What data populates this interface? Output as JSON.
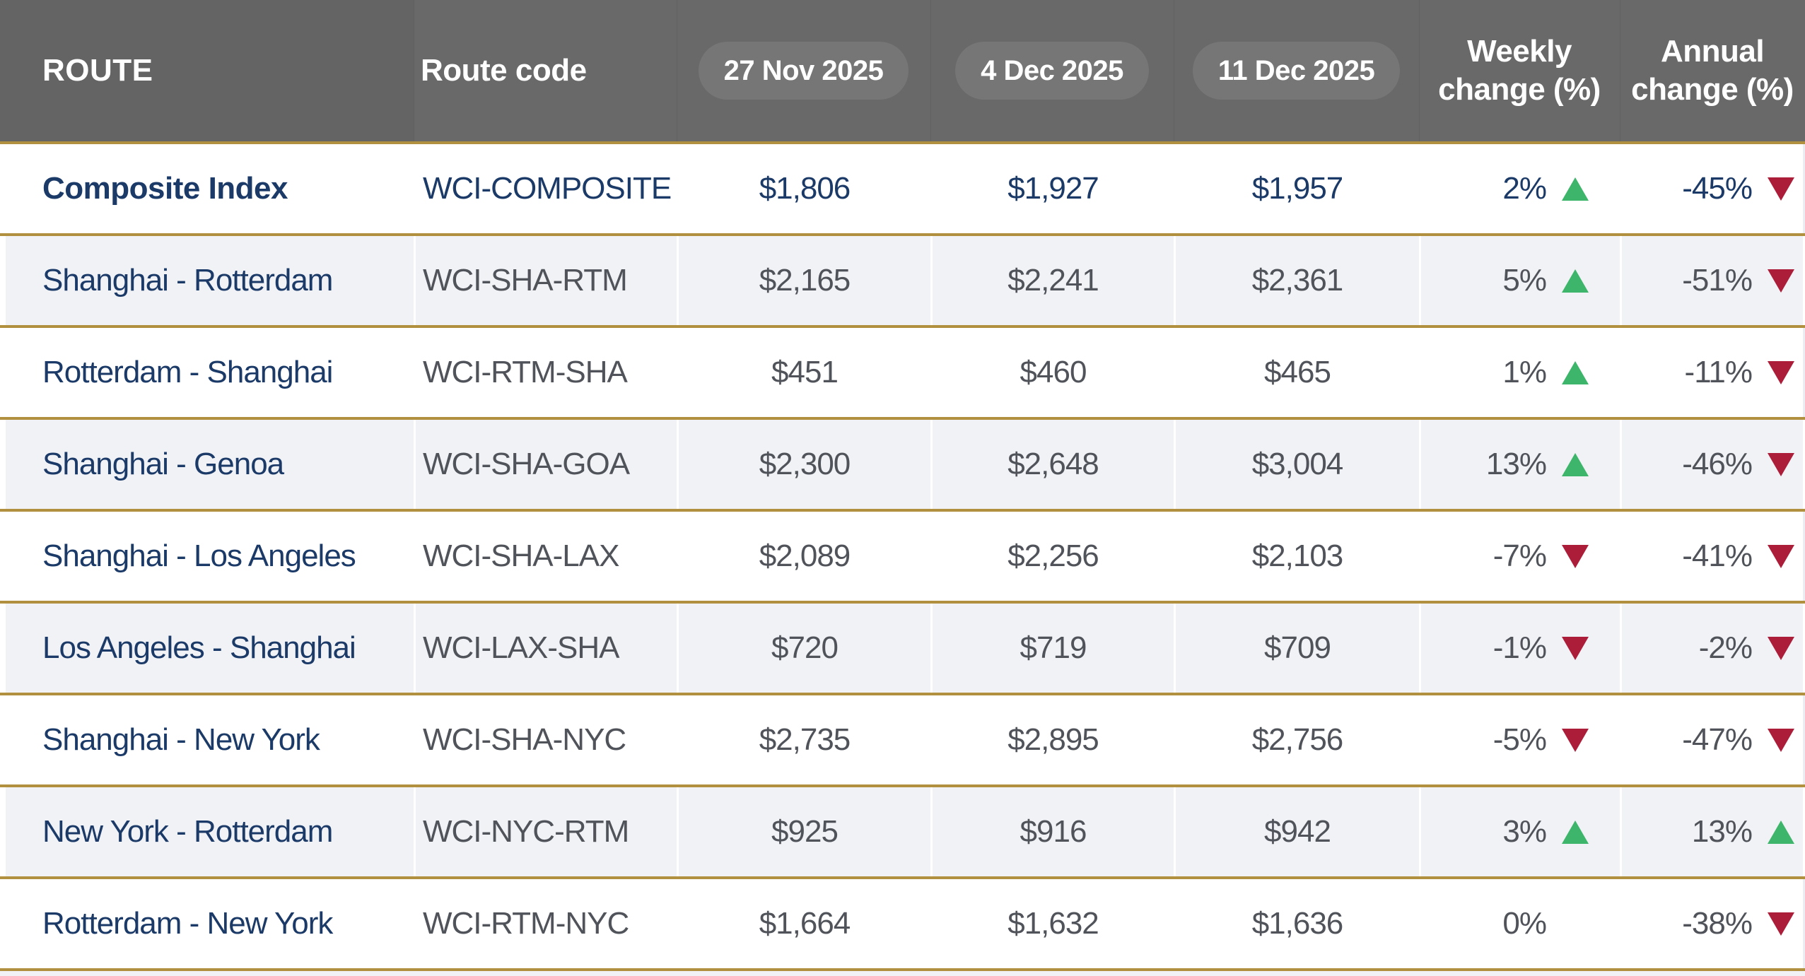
{
  "colors": {
    "header_bg": "#69696a",
    "header_bg_dark": "#646465",
    "pill_bg": "#767677",
    "gold_border": "#b19140",
    "navy_text": "#1b3a67",
    "gray_text": "#50535a",
    "green_up": "#3db56a",
    "red_down": "#ac1d3a",
    "alt_row_bg": "#f0f2f6"
  },
  "chart_data": {
    "type": "table",
    "columns": {
      "route": "ROUTE",
      "route_code": "Route code",
      "dates": [
        "27 Nov 2025",
        "4 Dec 2025",
        "11 Dec 2025"
      ],
      "weekly_change": "Weekly change (%)",
      "annual_change": "Annual change (%)"
    },
    "rows": [
      {
        "route": "Composite Index",
        "code": "WCI-COMPOSITE",
        "prices": [
          "$1,806",
          "$1,927",
          "$1,957"
        ],
        "weekly": "2%",
        "weekly_dir": "up",
        "annual": "-45%",
        "annual_dir": "down",
        "emphasis": true
      },
      {
        "route": "Shanghai - Rotterdam",
        "code": "WCI-SHA-RTM",
        "prices": [
          "$2,165",
          "$2,241",
          "$2,361"
        ],
        "weekly": "5%",
        "weekly_dir": "up",
        "annual": "-51%",
        "annual_dir": "down",
        "emphasis": false
      },
      {
        "route": "Rotterdam - Shanghai",
        "code": "WCI-RTM-SHA",
        "prices": [
          "$451",
          "$460",
          "$465"
        ],
        "weekly": "1%",
        "weekly_dir": "up",
        "annual": "-11%",
        "annual_dir": "down",
        "emphasis": false
      },
      {
        "route": "Shanghai - Genoa",
        "code": "WCI-SHA-GOA",
        "prices": [
          "$2,300",
          "$2,648",
          "$3,004"
        ],
        "weekly": "13%",
        "weekly_dir": "up",
        "annual": "-46%",
        "annual_dir": "down",
        "emphasis": false
      },
      {
        "route": "Shanghai - Los Angeles",
        "code": "WCI-SHA-LAX",
        "prices": [
          "$2,089",
          "$2,256",
          "$2,103"
        ],
        "weekly": "-7%",
        "weekly_dir": "down",
        "annual": "-41%",
        "annual_dir": "down",
        "emphasis": false
      },
      {
        "route": "Los Angeles - Shanghai",
        "code": "WCI-LAX-SHA",
        "prices": [
          "$720",
          "$719",
          "$709"
        ],
        "weekly": "-1%",
        "weekly_dir": "down",
        "annual": "-2%",
        "annual_dir": "down",
        "emphasis": false
      },
      {
        "route": "Shanghai - New York",
        "code": "WCI-SHA-NYC",
        "prices": [
          "$2,735",
          "$2,895",
          "$2,756"
        ],
        "weekly": "-5%",
        "weekly_dir": "down",
        "annual": "-47%",
        "annual_dir": "down",
        "emphasis": false
      },
      {
        "route": "New York - Rotterdam",
        "code": "WCI-NYC-RTM",
        "prices": [
          "$925",
          "$916",
          "$942"
        ],
        "weekly": "3%",
        "weekly_dir": "up",
        "annual": "13%",
        "annual_dir": "up",
        "emphasis": false
      },
      {
        "route": "Rotterdam - New York",
        "code": "WCI-RTM-NYC",
        "prices": [
          "$1,664",
          "$1,632",
          "$1,636"
        ],
        "weekly": "0%",
        "weekly_dir": "none",
        "annual": "-38%",
        "annual_dir": "down",
        "emphasis": false
      }
    ]
  }
}
